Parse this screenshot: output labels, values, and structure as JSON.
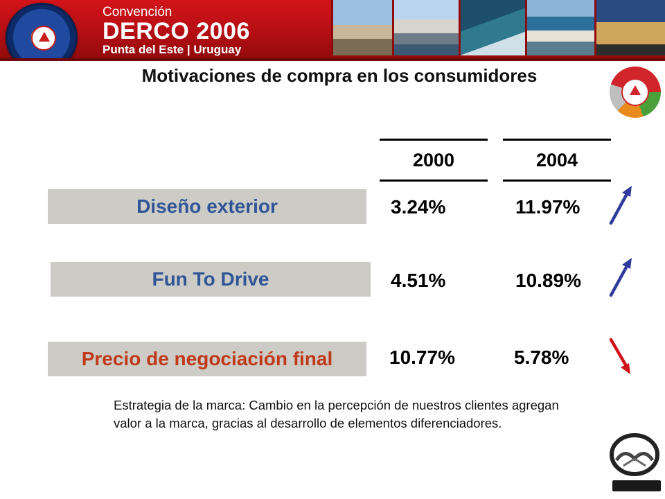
{
  "banner": {
    "line1": "Convención",
    "line2": "DERCO 2006",
    "line3": "Punta del Este | Uruguay",
    "badge_icon": "pasion-por-el-cliente-badge-icon",
    "photos": [
      "hand-sculpture-photo",
      "coast-buildings-photo",
      "marina-photo",
      "peninsula-aerial-photo",
      "hotel-photo"
    ]
  },
  "title": "Motivaciones de compra en los consumidores",
  "years": [
    "2000",
    "2004"
  ],
  "rows": [
    {
      "label": "Diseño exterior",
      "v2000": "3.24%",
      "v2004": "11.97%",
      "trend": "up",
      "label_color": "#2f5597"
    },
    {
      "label": "Fun To Drive",
      "v2000": "4.51%",
      "v2004": "10.89%",
      "trend": "up",
      "label_color": "#2f5597"
    },
    {
      "label": "Precio de negociación final",
      "v2000": "10.77%",
      "v2004": "5.78%",
      "trend": "down",
      "label_color": "#c03a1a"
    }
  ],
  "note": "Estrategia de la marca: Cambio en la percepción de nuestros clientes agregan valor a la marca,  gracias al desarrollo de elementos diferenciadores.",
  "colors": {
    "banner_red": "#c8141a",
    "label_bg": "#cccbc6",
    "arrow_up": "#2e3c9c",
    "arrow_down": "#d0101a"
  },
  "logos": {
    "emblem": "derco-es-mi-solucion-emblem-icon",
    "brand": "mazda-logo-icon"
  }
}
